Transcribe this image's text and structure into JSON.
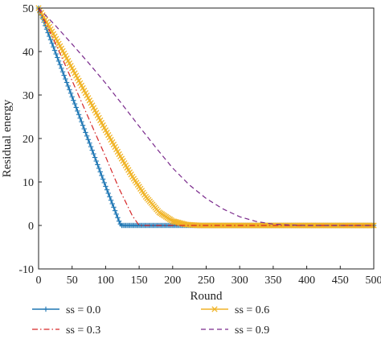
{
  "chart_data": {
    "type": "line",
    "title": "",
    "xlabel": "Round",
    "ylabel": "Residual energy",
    "xlim": [
      0,
      500
    ],
    "ylim": [
      -10,
      50
    ],
    "xticks": [
      0,
      50,
      100,
      150,
      200,
      250,
      300,
      350,
      400,
      450,
      500
    ],
    "yticks": [
      -10,
      0,
      10,
      20,
      30,
      40,
      50
    ],
    "grid": false,
    "legend_position": "below",
    "series": [
      {
        "name": "ss = 0.0",
        "color": "#1f77b4",
        "line_style": "solid",
        "marker": "plus",
        "x": [
          0,
          20,
          40,
          60,
          80,
          100,
          120,
          123,
          150,
          200,
          250,
          300,
          350,
          400,
          450,
          500
        ],
        "y": [
          50,
          41.9,
          33.7,
          25.5,
          17.3,
          9.0,
          1.0,
          0,
          0,
          0,
          0,
          0,
          0,
          0,
          0,
          0
        ]
      },
      {
        "name": "ss = 0.3",
        "color": "#d62728",
        "line_style": "dashdot",
        "marker": "none",
        "x": [
          0,
          20,
          40,
          60,
          80,
          100,
          120,
          140,
          150,
          200,
          250,
          300,
          350,
          400,
          450,
          500
        ],
        "y": [
          50,
          43.6,
          36.8,
          29.8,
          22.8,
          15.8,
          8.5,
          2.2,
          0,
          0,
          0,
          0,
          0,
          0,
          0,
          0
        ]
      },
      {
        "name": "ss = 0.6",
        "color": "#f0b428",
        "line_style": "solid",
        "marker": "x",
        "x": [
          0,
          20,
          40,
          60,
          80,
          100,
          120,
          140,
          160,
          180,
          200,
          220,
          240,
          300,
          350,
          400,
          450,
          500
        ],
        "y": [
          50,
          44.6,
          39.0,
          33.3,
          27.6,
          21.9,
          16.4,
          11.2,
          6.6,
          3.0,
          1.0,
          0.2,
          0,
          0,
          0,
          0,
          0,
          0
        ]
      },
      {
        "name": "ss = 0.9",
        "color": "#7a2a8c",
        "line_style": "dashed",
        "marker": "none",
        "x": [
          0,
          25,
          50,
          75,
          100,
          125,
          150,
          175,
          200,
          225,
          250,
          275,
          300,
          325,
          350,
          375,
          400,
          450,
          500
        ],
        "y": [
          50,
          46.0,
          41.7,
          37.3,
          32.7,
          27.8,
          22.8,
          17.9,
          13.2,
          9.3,
          6.2,
          3.8,
          2.0,
          0.9,
          0.3,
          0.1,
          0,
          0,
          0
        ]
      }
    ]
  }
}
